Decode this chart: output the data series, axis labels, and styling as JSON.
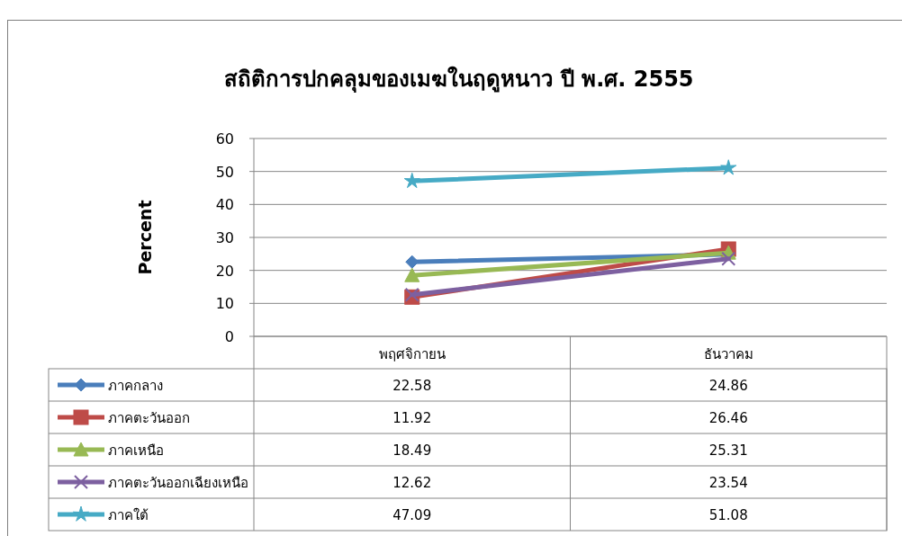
{
  "chart_data": {
    "type": "line",
    "title": "สถิติการปกคลุมของเมฆในฤดูหนาว ปี พ.ศ. 2555",
    "ylabel": "Percent",
    "categories": [
      "พฤศจิกายน",
      "ธันวาคม"
    ],
    "series": [
      {
        "name": "ภาคกลาง",
        "color": "#4a7ebb",
        "marker": "diamond",
        "values": [
          22.58,
          24.86
        ]
      },
      {
        "name": "ภาคตะวันออก",
        "color": "#be4b48",
        "marker": "square",
        "values": [
          11.92,
          26.46
        ]
      },
      {
        "name": "ภาคเหนือ",
        "color": "#98b954",
        "marker": "triangle",
        "values": [
          18.49,
          25.31
        ]
      },
      {
        "name": "ภาคตะวันออกเฉียงเหนือ",
        "color": "#7d60a0",
        "marker": "cross",
        "values": [
          12.62,
          23.54
        ]
      },
      {
        "name": "ภาคใต้",
        "color": "#46aac5",
        "marker": "star",
        "values": [
          47.09,
          51.08
        ]
      }
    ],
    "ylim": [
      0,
      60
    ],
    "yticks": [
      0,
      10,
      20,
      30,
      40,
      50,
      60
    ],
    "grid": "y",
    "data_labels": true,
    "legend": "bottom left"
  }
}
